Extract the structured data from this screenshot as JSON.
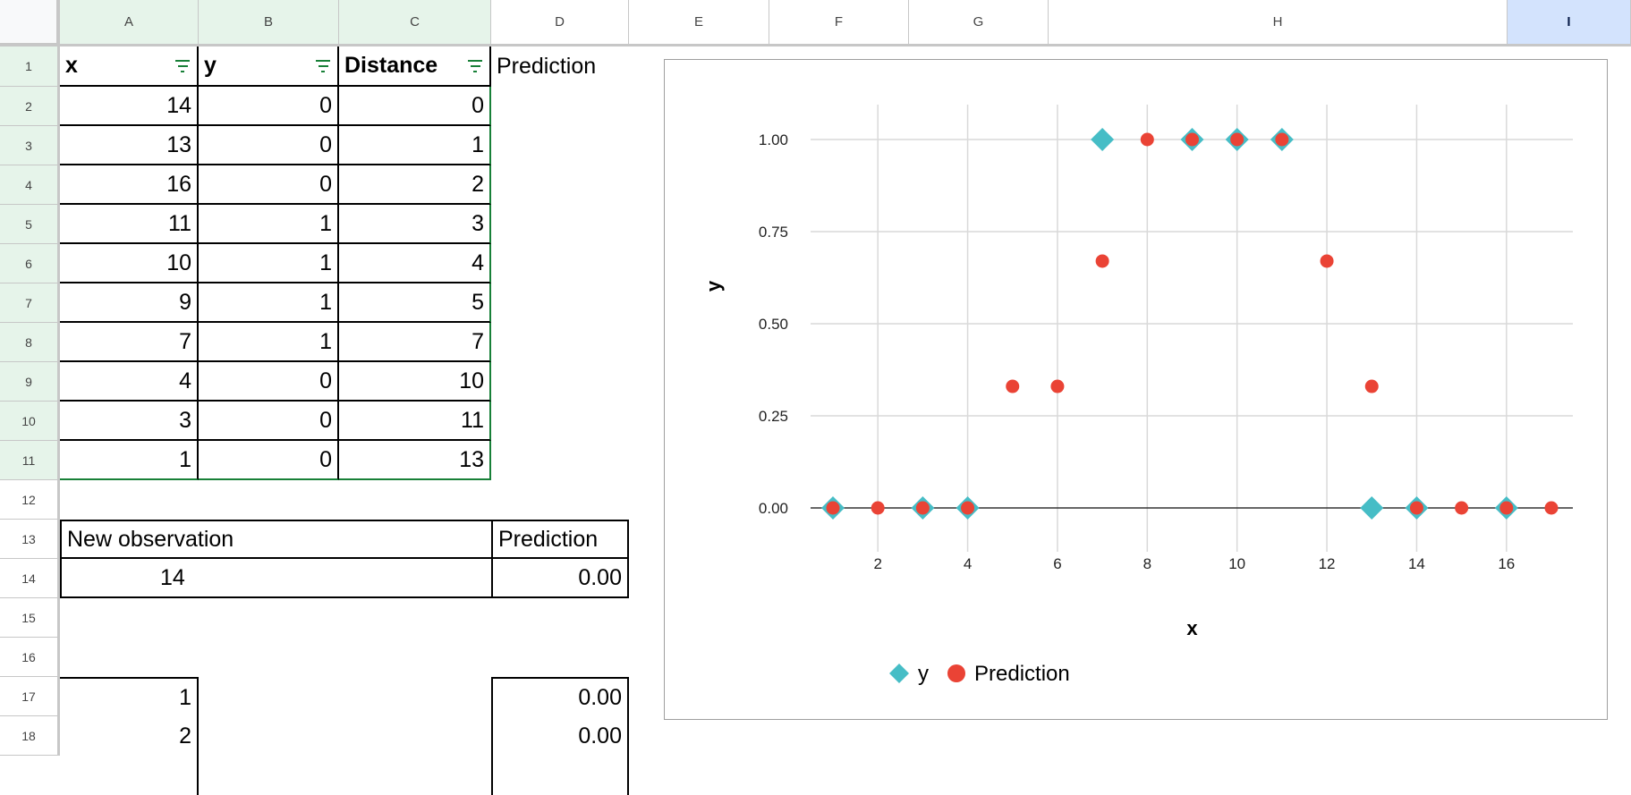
{
  "columns": [
    "A",
    "B",
    "C",
    "D",
    "E",
    "F",
    "G",
    "H",
    "I"
  ],
  "rows": [
    "1",
    "2",
    "3",
    "4",
    "5",
    "6",
    "7",
    "8",
    "9",
    "10",
    "11",
    "12",
    "13",
    "14",
    "15",
    "16",
    "17",
    "18"
  ],
  "table": {
    "headers": [
      "x",
      "y",
      "Distance",
      "Prediction"
    ],
    "data": [
      [
        "14",
        "0",
        "0"
      ],
      [
        "13",
        "0",
        "1"
      ],
      [
        "16",
        "0",
        "2"
      ],
      [
        "11",
        "1",
        "3"
      ],
      [
        "10",
        "1",
        "4"
      ],
      [
        "9",
        "1",
        "5"
      ],
      [
        "7",
        "1",
        "7"
      ],
      [
        "4",
        "0",
        "10"
      ],
      [
        "3",
        "0",
        "11"
      ],
      [
        "1",
        "0",
        "13"
      ]
    ]
  },
  "new_obs": {
    "label": "New observation",
    "pred_label": "Prediction",
    "value": "14",
    "prediction": "0.00"
  },
  "grid_rows": [
    {
      "x": "1",
      "pred": "0.00"
    },
    {
      "x": "2",
      "pred": "0.00"
    }
  ],
  "icons": {
    "filter": "filter-icon"
  },
  "colors": {
    "y": "#46bdc6",
    "prediction": "#ea4335",
    "selected_header": "#e6f4ea",
    "active_header": "#d3e3fd",
    "filter": "#188038"
  },
  "chart_data": {
    "type": "scatter",
    "xlabel": "x",
    "ylabel": "y",
    "xlim": [
      0.5,
      17.5
    ],
    "ylim": [
      -0.1,
      1.1
    ],
    "xticks": [
      "2",
      "4",
      "6",
      "8",
      "10",
      "12",
      "14",
      "16"
    ],
    "yticks": [
      "0.00",
      "0.25",
      "0.50",
      "0.75",
      "1.00"
    ],
    "grid": true,
    "legend": "bottom",
    "series": [
      {
        "name": "y",
        "marker": "diamond",
        "color": "#46bdc6",
        "points": [
          [
            1,
            0
          ],
          [
            3,
            0
          ],
          [
            4,
            0
          ],
          [
            7,
            1
          ],
          [
            9,
            1
          ],
          [
            10,
            1
          ],
          [
            11,
            1
          ],
          [
            13,
            0
          ],
          [
            14,
            0
          ],
          [
            16,
            0
          ]
        ]
      },
      {
        "name": "Prediction",
        "marker": "circle",
        "color": "#ea4335",
        "points": [
          [
            1,
            0
          ],
          [
            2,
            0
          ],
          [
            3,
            0
          ],
          [
            4,
            0
          ],
          [
            5,
            0.33
          ],
          [
            6,
            0.33
          ],
          [
            7,
            0.67
          ],
          [
            8,
            1
          ],
          [
            9,
            1
          ],
          [
            10,
            1
          ],
          [
            11,
            1
          ],
          [
            12,
            0.67
          ],
          [
            13,
            0.33
          ],
          [
            14,
            0
          ],
          [
            15,
            0
          ],
          [
            16,
            0
          ],
          [
            17,
            0
          ]
        ]
      }
    ]
  }
}
